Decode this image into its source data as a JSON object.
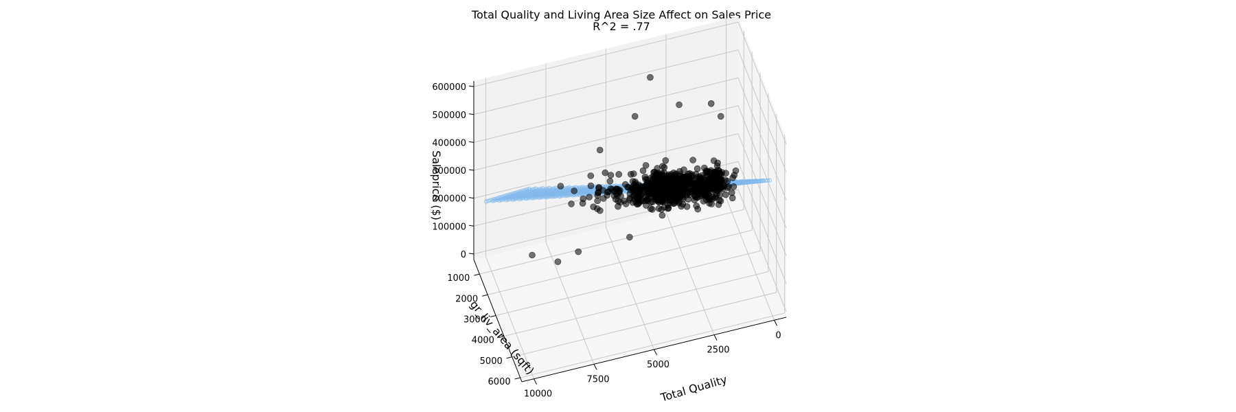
{
  "chart_data": {
    "type": "scatter3d",
    "title": "Total Quality and Living Area Size Affect on Sales Price",
    "subtitle": "R^2 = .77",
    "xlabel": "Total Quality",
    "ylabel": "gr_liv_area (sqft)",
    "zlabel": "Saleprice ($)",
    "x_ticks": [
      0,
      2500,
      5000,
      7500,
      10000
    ],
    "y_ticks": [
      1000,
      2000,
      3000,
      4000,
      5000,
      6000
    ],
    "z_ticks": [
      0,
      100000,
      200000,
      300000,
      400000,
      500000,
      600000
    ],
    "xlim": [
      -500,
      10500
    ],
    "ylim": [
      300,
      6200
    ],
    "zlim": [
      -20000,
      620000
    ],
    "grid": true,
    "colors": {
      "points": "#000000",
      "plane": "#7fb8ec",
      "pane": "#f2f2f2",
      "grid": "#c8c8c8"
    },
    "series": [
      {
        "type": "scatter",
        "clusters": [
          {
            "x_center": 2800,
            "x_spread": 1400,
            "y_center": 1450,
            "y_spread": 450,
            "count": 520
          },
          {
            "x_center": 1100,
            "x_spread": 700,
            "y_center": 1800,
            "y_spread": 500,
            "count": 180
          },
          {
            "x_center": 5200,
            "x_spread": 1700,
            "y_center": 1700,
            "y_spread": 600,
            "count": 60
          }
        ],
        "points": [
          [
            3500,
            1300,
            560000
          ],
          [
            2600,
            2200,
            510000
          ],
          [
            6200,
            3100,
            490000
          ],
          [
            1200,
            2000,
            470000
          ],
          [
            900,
            2300,
            440000
          ],
          [
            4200,
            1500,
            450000
          ],
          [
            7800,
            4300,
            420000
          ],
          [
            9800,
            5400,
            360000
          ],
          [
            8800,
            5600,
            330000
          ],
          [
            5000,
            3200,
            160000
          ],
          [
            3000,
            1300,
            55000
          ],
          [
            7000,
            2800,
            120000
          ]
        ]
      },
      {
        "type": "plane",
        "x_range": [
          0,
          10000
        ],
        "y_range": [
          334,
          5642
        ],
        "plane_points": [
          [
            0,
            334,
            30000
          ],
          [
            10000,
            334,
            180000
          ],
          [
            0,
            5642,
            440000
          ],
          [
            10000,
            5642,
            620000
          ]
        ]
      }
    ]
  }
}
